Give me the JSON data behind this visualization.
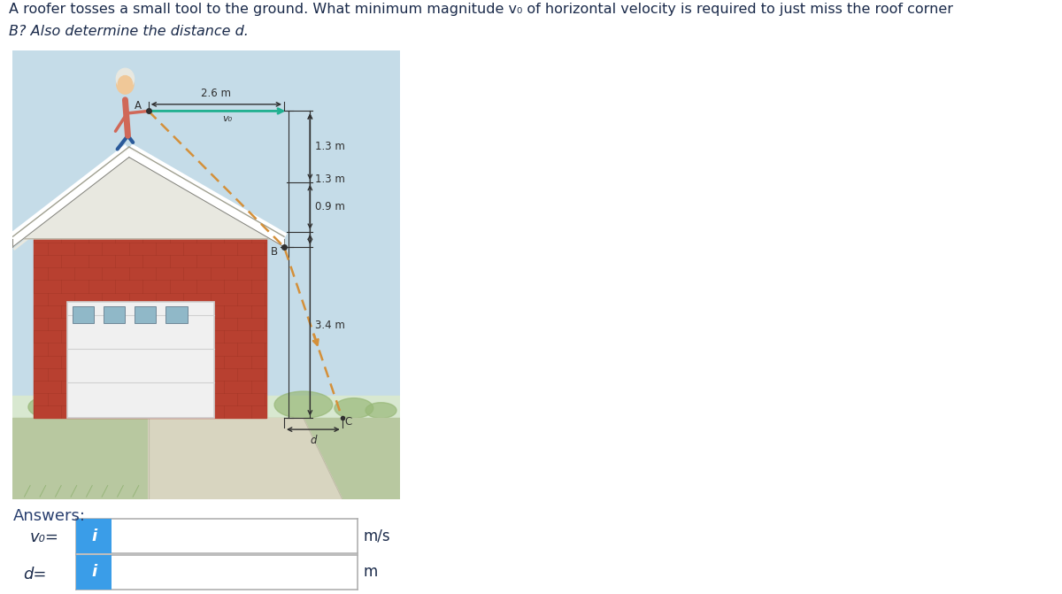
{
  "title_line1": "A roofer tosses a small tool to the ground. What minimum magnitude v₀ of horizontal velocity is required to just miss the roof corner",
  "title_line2": "B? Also determine the distance d.",
  "fig_bg": "#ffffff",
  "answers_label": "Answers:",
  "vo_label": "v₀=",
  "d_label": "d=",
  "units_vo": "m/s",
  "units_d": "m",
  "dim_26": "2.6 m",
  "dim_13": "1.3 m",
  "dim_09": "0.9 m",
  "dim_34": "3.4 m",
  "label_A": "A",
  "label_B": "B",
  "label_vo": "v₀",
  "label_d": "d",
  "label_C": "C",
  "sky_color": "#c5dce8",
  "sky_bottom_color": "#d8e8d0",
  "ground_color": "#b8c8a0",
  "ground_far_color": "#c8d8b0",
  "brick_color": "#b84030",
  "brick_dark": "#963020",
  "brick_mortar": "#d0a090",
  "roof_white": "#e8e8e0",
  "roof_gray": "#c0bdb0",
  "driveway_color": "#d8d5c0",
  "driveway_shadow": "#c0bda8",
  "trajectory_color": "#d4903a",
  "vo_arrow_color": "#20b090",
  "dim_color": "#303030",
  "text_color": "#1a2a4a",
  "answers_color": "#2a4070",
  "input_blue": "#3a9de8",
  "input_bg": "#ffffff",
  "input_border": "#b0b0b0",
  "door_color": "#f0f0f0",
  "door_border": "#d0d0d0",
  "window_color": "#90b8c8",
  "window_border": "#708898"
}
